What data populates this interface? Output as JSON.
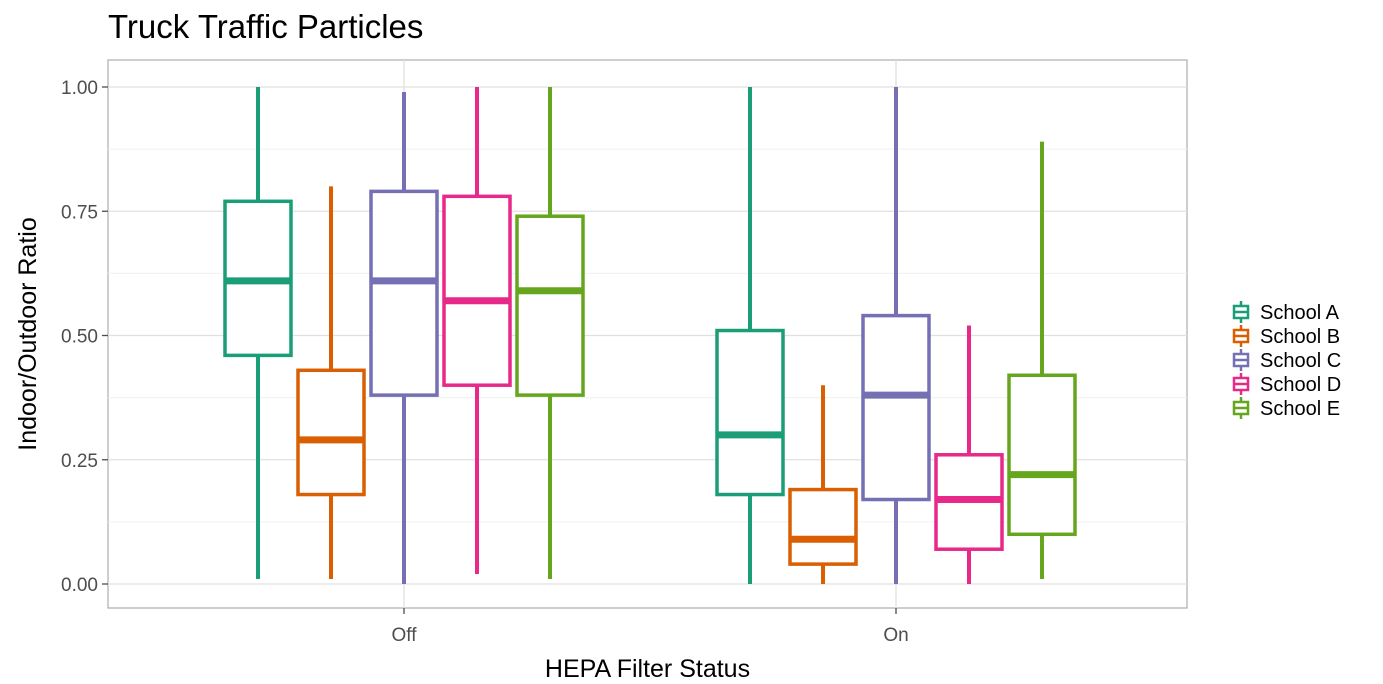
{
  "chart_data": {
    "type": "boxplot",
    "title": "Truck Traffic Particles",
    "xlabel": "HEPA Filter Status",
    "ylabel": "Indoor/Outdoor Ratio",
    "categories": [
      "Off",
      "On"
    ],
    "ylim": [
      -0.04,
      1.05
    ],
    "yticks": [
      0.0,
      0.25,
      0.5,
      0.75,
      1.0
    ],
    "ytick_labels": [
      "0.00",
      "0.25",
      "0.50",
      "0.75",
      "1.00"
    ],
    "grid": true,
    "legend_position": "right",
    "series": [
      {
        "name": "School A",
        "color": "#1b9e77",
        "boxes": [
          {
            "category": "Off",
            "min": 0.01,
            "q1": 0.46,
            "median": 0.61,
            "q3": 0.77,
            "max": 1.0
          },
          {
            "category": "On",
            "min": 0.0,
            "q1": 0.18,
            "median": 0.3,
            "q3": 0.51,
            "max": 1.0
          }
        ]
      },
      {
        "name": "School B",
        "color": "#d95f02",
        "boxes": [
          {
            "category": "Off",
            "min": 0.01,
            "q1": 0.18,
            "median": 0.29,
            "q3": 0.43,
            "max": 0.8
          },
          {
            "category": "On",
            "min": 0.0,
            "q1": 0.04,
            "median": 0.09,
            "q3": 0.19,
            "max": 0.4
          }
        ]
      },
      {
        "name": "School C",
        "color": "#7570b3",
        "boxes": [
          {
            "category": "Off",
            "min": 0.0,
            "q1": 0.38,
            "median": 0.61,
            "q3": 0.79,
            "max": 0.99
          },
          {
            "category": "On",
            "min": 0.0,
            "q1": 0.17,
            "median": 0.38,
            "q3": 0.54,
            "max": 1.0
          }
        ]
      },
      {
        "name": "School D",
        "color": "#e7298a",
        "boxes": [
          {
            "category": "Off",
            "min": 0.02,
            "q1": 0.4,
            "median": 0.57,
            "q3": 0.78,
            "max": 1.0
          },
          {
            "category": "On",
            "min": 0.0,
            "q1": 0.07,
            "median": 0.17,
            "q3": 0.26,
            "max": 0.52
          }
        ]
      },
      {
        "name": "School E",
        "color": "#66a61e",
        "boxes": [
          {
            "category": "Off",
            "min": 0.01,
            "q1": 0.38,
            "median": 0.59,
            "q3": 0.74,
            "max": 1.0
          },
          {
            "category": "On",
            "min": 0.01,
            "q1": 0.1,
            "median": 0.22,
            "q3": 0.42,
            "max": 0.89
          }
        ]
      }
    ]
  }
}
